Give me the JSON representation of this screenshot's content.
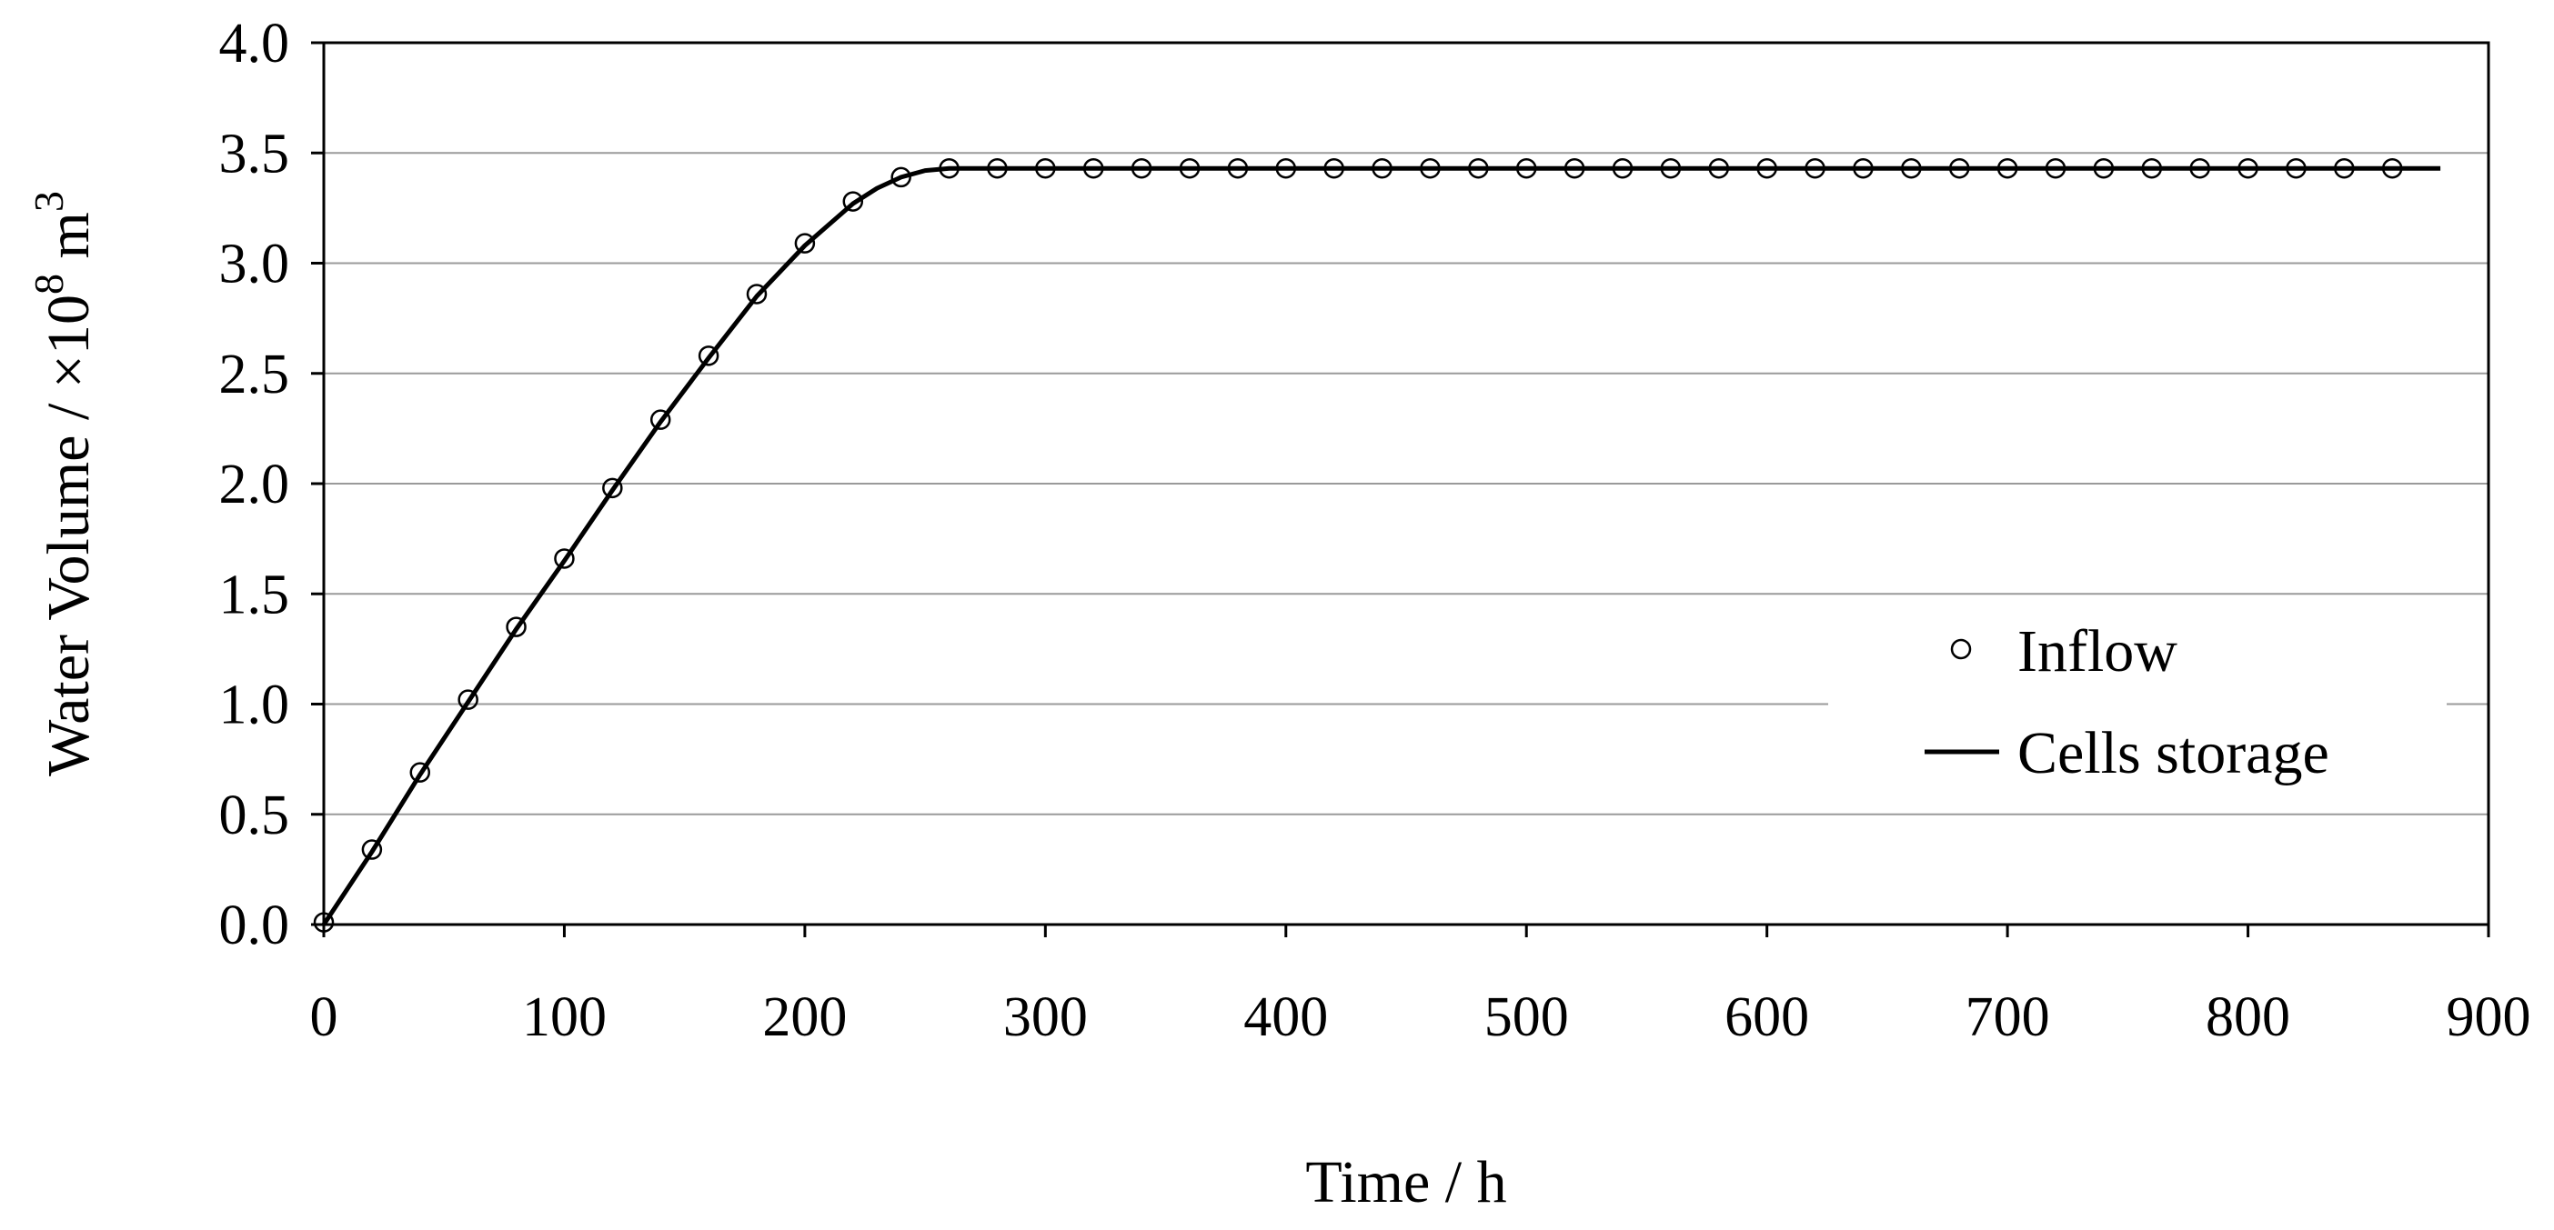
{
  "chart_data": {
    "type": "line",
    "xlabel": "Time / h",
    "ylabel": {
      "main": "Water Volume / ×10",
      "exp": "8",
      "unit": " m",
      "unit_exp": "3"
    },
    "xlim": [
      0,
      900
    ],
    "ylim": [
      0,
      4.0
    ],
    "xticks": [
      "0",
      "100",
      "200",
      "300",
      "400",
      "500",
      "600",
      "700",
      "800",
      "900"
    ],
    "yticks": [
      "0.0",
      "0.5",
      "1.0",
      "1.5",
      "2.0",
      "2.5",
      "3.0",
      "3.5",
      "4.0"
    ],
    "grid": "horizontal",
    "legend_position": "right-middle",
    "series": [
      {
        "name": "Inflow",
        "style": "open-circle-markers",
        "color": "#000000",
        "x": [
          0,
          20,
          40,
          60,
          80,
          100,
          120,
          140,
          160,
          180,
          200,
          220,
          240,
          260,
          280,
          300,
          320,
          340,
          360,
          380,
          400,
          420,
          440,
          460,
          480,
          500,
          520,
          540,
          560,
          580,
          600,
          620,
          640,
          660,
          680,
          700,
          720,
          740,
          760,
          780,
          800,
          820,
          840,
          860
        ],
        "y": [
          0.01,
          0.34,
          0.69,
          1.02,
          1.35,
          1.66,
          1.98,
          2.29,
          2.58,
          2.86,
          3.09,
          3.28,
          3.39,
          3.43,
          3.43,
          3.43,
          3.43,
          3.43,
          3.43,
          3.43,
          3.43,
          3.43,
          3.43,
          3.43,
          3.43,
          3.43,
          3.43,
          3.43,
          3.43,
          3.43,
          3.43,
          3.43,
          3.43,
          3.43,
          3.43,
          3.43,
          3.43,
          3.43,
          3.43,
          3.43,
          3.43,
          3.43,
          3.43,
          3.43
        ]
      },
      {
        "name": "Cells storage",
        "style": "solid-line",
        "color": "#000000",
        "x": [
          0,
          20,
          40,
          60,
          80,
          100,
          120,
          140,
          160,
          180,
          200,
          220,
          230,
          240,
          250,
          260,
          300,
          400,
          500,
          600,
          700,
          800,
          880
        ],
        "y": [
          0.0,
          0.33,
          0.68,
          1.01,
          1.34,
          1.65,
          1.97,
          2.28,
          2.57,
          2.85,
          3.08,
          3.27,
          3.34,
          3.39,
          3.42,
          3.43,
          3.43,
          3.43,
          3.43,
          3.43,
          3.43,
          3.43,
          3.43
        ]
      }
    ]
  }
}
